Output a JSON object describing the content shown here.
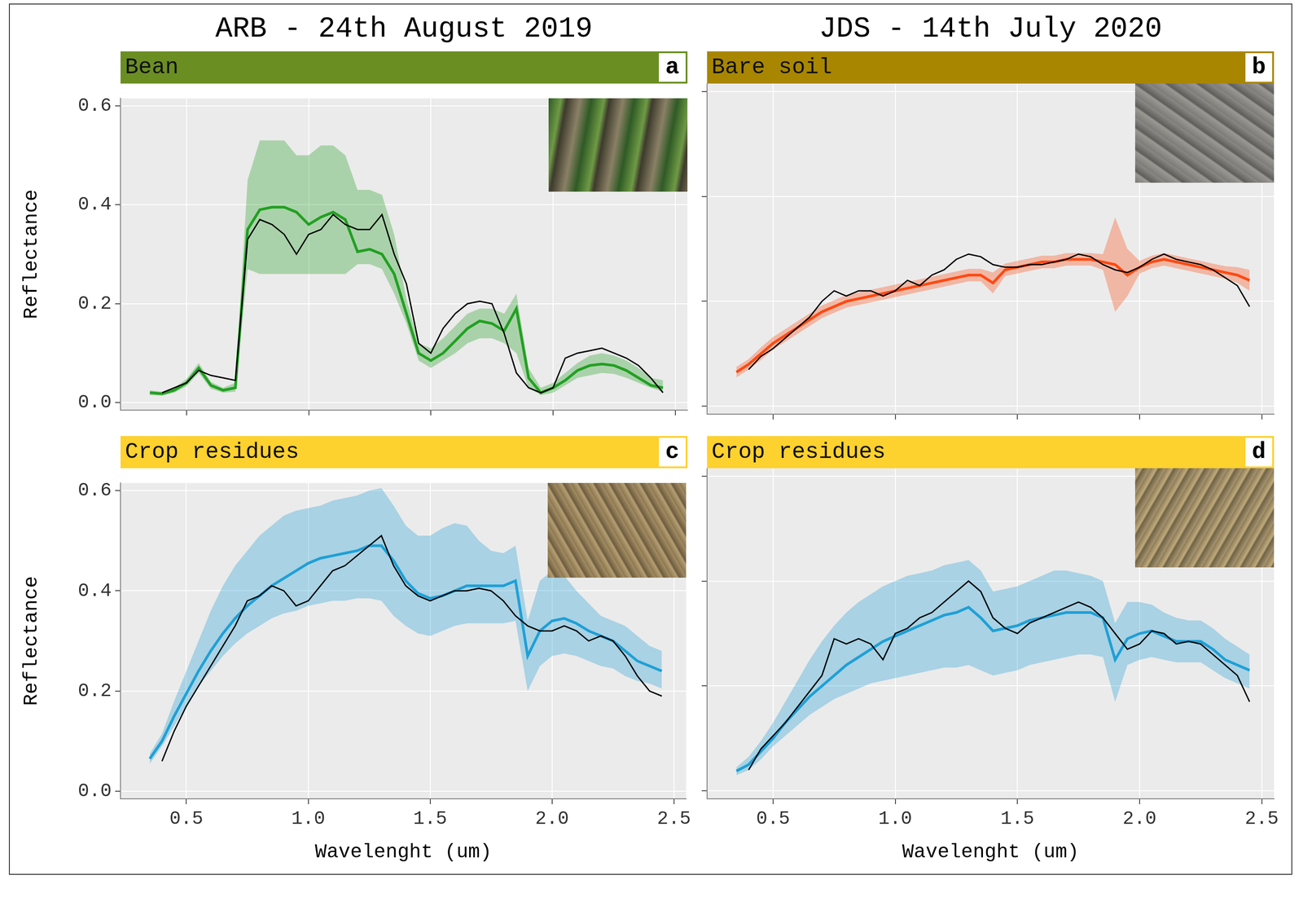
{
  "chart_data": [
    {
      "type": "line",
      "subtitle": "ARB - 24th August 2019",
      "title": "Bean",
      "panel": "a",
      "ylabel": "Reflectance",
      "tick_labels": "y",
      "grid": true,
      "xlim": [
        0.23,
        2.55
      ],
      "ylim": [
        -0.015,
        0.615
      ],
      "xticks": [
        0.5,
        {
          "value": 1,
          "label": "1.0"
        },
        1.5,
        {
          "value": 2,
          "label": "2.0"
        },
        2.5
      ],
      "yticks": [
        {
          "value": 0,
          "label": "0.0"
        },
        0.2,
        0.4,
        0.6
      ],
      "x": [
        0.35,
        0.4,
        0.45,
        0.5,
        0.55,
        0.6,
        0.65,
        0.7,
        0.75,
        0.8,
        0.85,
        0.9,
        0.95,
        1.0,
        1.05,
        1.1,
        1.15,
        1.2,
        1.25,
        1.3,
        1.35,
        1.4,
        1.45,
        1.5,
        1.55,
        1.6,
        1.65,
        1.7,
        1.75,
        1.8,
        1.85,
        1.9,
        1.95,
        2.0,
        2.05,
        2.1,
        2.15,
        2.2,
        2.25,
        2.3,
        2.35,
        2.4,
        2.45
      ],
      "series": [
        {
          "color": "#22a022",
          "values": [
            0.02,
            0.018,
            0.025,
            0.04,
            0.07,
            0.035,
            0.025,
            0.03,
            0.35,
            0.39,
            0.395,
            0.395,
            0.385,
            0.36,
            0.375,
            0.385,
            0.37,
            0.305,
            0.31,
            0.3,
            0.26,
            0.18,
            0.1,
            0.085,
            0.1,
            0.125,
            0.15,
            0.165,
            0.16,
            0.145,
            0.19,
            0.05,
            0.02,
            0.03,
            0.045,
            0.065,
            0.075,
            0.078,
            0.075,
            0.065,
            0.05,
            0.035,
            0.03
          ],
          "lower": [
            0.015,
            0.014,
            0.02,
            0.033,
            0.06,
            0.028,
            0.02,
            0.022,
            0.27,
            0.26,
            0.26,
            0.26,
            0.26,
            0.26,
            0.26,
            0.26,
            0.26,
            0.28,
            0.28,
            0.27,
            0.22,
            0.16,
            0.085,
            0.07,
            0.085,
            0.1,
            0.12,
            0.13,
            0.13,
            0.12,
            0.1,
            0.03,
            0.015,
            0.02,
            0.035,
            0.05,
            0.055,
            0.06,
            0.058,
            0.05,
            0.04,
            0.03,
            0.022
          ],
          "upper": [
            0.025,
            0.022,
            0.03,
            0.048,
            0.08,
            0.042,
            0.03,
            0.04,
            0.45,
            0.53,
            0.53,
            0.53,
            0.5,
            0.5,
            0.52,
            0.52,
            0.5,
            0.43,
            0.43,
            0.42,
            0.34,
            0.21,
            0.12,
            0.11,
            0.13,
            0.155,
            0.18,
            0.19,
            0.19,
            0.18,
            0.22,
            0.07,
            0.03,
            0.04,
            0.06,
            0.08,
            0.095,
            0.1,
            0.095,
            0.085,
            0.07,
            0.05,
            0.045
          ]
        },
        {
          "color": "#000000",
          "values": [
            null,
            0.02,
            0.03,
            0.04,
            0.065,
            0.055,
            0.05,
            0.045,
            0.33,
            0.37,
            0.36,
            0.34,
            0.3,
            0.34,
            0.35,
            0.38,
            0.36,
            0.35,
            0.35,
            0.38,
            0.3,
            0.24,
            0.12,
            0.1,
            0.15,
            0.18,
            0.2,
            0.205,
            0.2,
            0.14,
            0.06,
            0.03,
            0.02,
            0.03,
            0.09,
            0.1,
            0.105,
            0.11,
            0.1,
            0.09,
            0.075,
            0.05,
            0.02
          ]
        }
      ]
    },
    {
      "type": "line",
      "subtitle": "JDS - 14th July 2020",
      "title": "Bare soil",
      "panel": "b",
      "tick_labels": false,
      "grid": true,
      "xlim": [
        0.23,
        2.55
      ],
      "ylim": [
        -0.015,
        0.615
      ],
      "xticks": [
        0.5,
        {
          "value": 1,
          "label": "1.0"
        },
        1.5,
        {
          "value": 2,
          "label": "2.0"
        },
        2.5
      ],
      "yticks": [
        {
          "value": 0,
          "label": "0.0"
        },
        0.2,
        0.4,
        0.6
      ],
      "x": [
        0.35,
        0.4,
        0.45,
        0.5,
        0.55,
        0.6,
        0.65,
        0.7,
        0.75,
        0.8,
        0.85,
        0.9,
        0.95,
        1.0,
        1.05,
        1.1,
        1.15,
        1.2,
        1.25,
        1.3,
        1.35,
        1.4,
        1.45,
        1.5,
        1.55,
        1.6,
        1.65,
        1.7,
        1.75,
        1.8,
        1.85,
        1.9,
        1.95,
        2.0,
        2.05,
        2.1,
        2.15,
        2.2,
        2.25,
        2.3,
        2.35,
        2.4,
        2.45
      ],
      "series": [
        {
          "color": "#ff4a12",
          "values": [
            0.065,
            0.08,
            0.1,
            0.12,
            0.135,
            0.15,
            0.165,
            0.18,
            0.19,
            0.2,
            0.205,
            0.21,
            0.215,
            0.22,
            0.225,
            0.23,
            0.235,
            0.24,
            0.245,
            0.25,
            0.25,
            0.235,
            0.26,
            0.265,
            0.27,
            0.275,
            0.275,
            0.28,
            0.28,
            0.28,
            0.275,
            0.27,
            0.25,
            0.265,
            0.275,
            0.28,
            0.275,
            0.27,
            0.265,
            0.26,
            0.255,
            0.25,
            0.24
          ],
          "lower": [
            0.055,
            0.07,
            0.088,
            0.108,
            0.123,
            0.138,
            0.153,
            0.168,
            0.178,
            0.188,
            0.193,
            0.198,
            0.203,
            0.208,
            0.213,
            0.218,
            0.223,
            0.228,
            0.233,
            0.238,
            0.238,
            0.215,
            0.248,
            0.253,
            0.258,
            0.263,
            0.263,
            0.268,
            0.268,
            0.268,
            0.26,
            0.18,
            0.21,
            0.253,
            0.263,
            0.268,
            0.263,
            0.258,
            0.253,
            0.248,
            0.243,
            0.235,
            0.22
          ],
          "upper": [
            0.075,
            0.09,
            0.112,
            0.132,
            0.147,
            0.162,
            0.177,
            0.192,
            0.202,
            0.212,
            0.217,
            0.222,
            0.227,
            0.232,
            0.237,
            0.242,
            0.247,
            0.252,
            0.257,
            0.262,
            0.262,
            0.255,
            0.272,
            0.277,
            0.282,
            0.287,
            0.287,
            0.292,
            0.292,
            0.292,
            0.29,
            0.36,
            0.3,
            0.277,
            0.287,
            0.292,
            0.287,
            0.282,
            0.277,
            0.272,
            0.267,
            0.265,
            0.26
          ]
        },
        {
          "color": "#000000",
          "values": [
            null,
            0.07,
            0.095,
            0.11,
            0.13,
            0.15,
            0.17,
            0.2,
            0.22,
            0.21,
            0.22,
            0.22,
            0.21,
            0.22,
            0.24,
            0.23,
            0.25,
            0.26,
            0.28,
            0.29,
            0.285,
            0.27,
            0.265,
            0.265,
            0.27,
            0.27,
            0.275,
            0.28,
            0.29,
            0.285,
            0.27,
            0.26,
            0.255,
            0.265,
            0.28,
            0.29,
            0.28,
            0.275,
            0.27,
            0.26,
            0.245,
            0.23,
            0.19
          ]
        }
      ]
    },
    {
      "type": "line",
      "title": "Crop residues",
      "panel": "c",
      "xlabel": "Wavelenght (um)",
      "ylabel": "Reflectance",
      "grid": true,
      "xlim": [
        0.23,
        2.55
      ],
      "ylim": [
        -0.015,
        0.615
      ],
      "xticks": [
        0.5,
        {
          "value": 1,
          "label": "1.0"
        },
        1.5,
        {
          "value": 2,
          "label": "2.0"
        },
        2.5
      ],
      "yticks": [
        {
          "value": 0,
          "label": "0.0"
        },
        0.2,
        0.4,
        0.6
      ],
      "x": [
        0.35,
        0.4,
        0.45,
        0.5,
        0.55,
        0.6,
        0.65,
        0.7,
        0.75,
        0.8,
        0.85,
        0.9,
        0.95,
        1.0,
        1.05,
        1.1,
        1.15,
        1.2,
        1.25,
        1.3,
        1.35,
        1.4,
        1.45,
        1.5,
        1.55,
        1.6,
        1.65,
        1.7,
        1.75,
        1.8,
        1.85,
        1.9,
        1.95,
        2.0,
        2.05,
        2.1,
        2.15,
        2.2,
        2.25,
        2.3,
        2.35,
        2.4,
        2.45
      ],
      "series": [
        {
          "color": "#1fa0d6",
          "values": [
            0.065,
            0.1,
            0.15,
            0.195,
            0.24,
            0.28,
            0.315,
            0.345,
            0.37,
            0.39,
            0.41,
            0.425,
            0.44,
            0.455,
            0.465,
            0.47,
            0.475,
            0.48,
            0.49,
            0.49,
            0.46,
            0.42,
            0.395,
            0.385,
            0.39,
            0.4,
            0.41,
            0.41,
            0.41,
            0.41,
            0.42,
            0.27,
            0.32,
            0.34,
            0.345,
            0.335,
            0.32,
            0.31,
            0.3,
            0.28,
            0.26,
            0.25,
            0.24
          ],
          "lower": [
            0.055,
            0.09,
            0.13,
            0.17,
            0.21,
            0.24,
            0.27,
            0.295,
            0.315,
            0.33,
            0.345,
            0.355,
            0.36,
            0.37,
            0.375,
            0.38,
            0.38,
            0.385,
            0.385,
            0.38,
            0.35,
            0.33,
            0.315,
            0.31,
            0.32,
            0.33,
            0.335,
            0.335,
            0.335,
            0.335,
            0.34,
            0.2,
            0.25,
            0.27,
            0.275,
            0.27,
            0.26,
            0.25,
            0.245,
            0.23,
            0.22,
            0.215,
            0.205
          ],
          "upper": [
            0.075,
            0.115,
            0.18,
            0.24,
            0.3,
            0.36,
            0.41,
            0.45,
            0.48,
            0.51,
            0.53,
            0.55,
            0.56,
            0.565,
            0.57,
            0.58,
            0.585,
            0.59,
            0.6,
            0.605,
            0.57,
            0.53,
            0.51,
            0.51,
            0.525,
            0.535,
            0.53,
            0.5,
            0.48,
            0.475,
            0.49,
            0.34,
            0.42,
            0.44,
            0.43,
            0.4,
            0.375,
            0.35,
            0.34,
            0.33,
            0.31,
            0.29,
            0.28
          ]
        },
        {
          "color": "#000000",
          "values": [
            null,
            0.06,
            0.12,
            0.17,
            0.21,
            0.25,
            0.29,
            0.33,
            0.38,
            0.39,
            0.41,
            0.4,
            0.37,
            0.38,
            0.41,
            0.44,
            0.45,
            0.47,
            0.49,
            0.51,
            0.45,
            0.41,
            0.39,
            0.38,
            0.39,
            0.4,
            0.4,
            0.405,
            0.4,
            0.38,
            0.35,
            0.33,
            0.32,
            0.32,
            0.33,
            0.32,
            0.3,
            0.31,
            0.3,
            0.27,
            0.23,
            0.2,
            0.19
          ]
        }
      ]
    },
    {
      "type": "line",
      "title": "Crop residues",
      "panel": "d",
      "xlabel": "Wavelenght (um)",
      "tick_labels": "x",
      "grid": true,
      "xlim": [
        0.23,
        2.55
      ],
      "ylim": [
        -0.015,
        0.615
      ],
      "xticks": [
        0.5,
        {
          "value": 1,
          "label": "1.0"
        },
        1.5,
        {
          "value": 2,
          "label": "2.0"
        },
        2.5
      ],
      "yticks": [
        {
          "value": 0,
          "label": "0.0"
        },
        0.2,
        0.4,
        0.6
      ],
      "x": [
        0.35,
        0.4,
        0.45,
        0.5,
        0.55,
        0.6,
        0.65,
        0.7,
        0.75,
        0.8,
        0.85,
        0.9,
        0.95,
        1.0,
        1.05,
        1.1,
        1.15,
        1.2,
        1.25,
        1.3,
        1.35,
        1.4,
        1.45,
        1.5,
        1.55,
        1.6,
        1.65,
        1.7,
        1.75,
        1.8,
        1.85,
        1.9,
        1.95,
        2.0,
        2.05,
        2.1,
        2.15,
        2.2,
        2.25,
        2.3,
        2.35,
        2.4,
        2.45
      ],
      "series": [
        {
          "color": "#1fa0d6",
          "values": [
            0.038,
            0.05,
            0.075,
            0.1,
            0.13,
            0.155,
            0.18,
            0.2,
            0.22,
            0.24,
            0.255,
            0.27,
            0.285,
            0.295,
            0.305,
            0.315,
            0.325,
            0.335,
            0.34,
            0.35,
            0.33,
            0.305,
            0.31,
            0.315,
            0.325,
            0.33,
            0.335,
            0.34,
            0.34,
            0.34,
            0.33,
            0.25,
            0.29,
            0.3,
            0.305,
            0.295,
            0.285,
            0.285,
            0.285,
            0.27,
            0.25,
            0.24,
            0.23
          ],
          "lower": [
            0.03,
            0.04,
            0.06,
            0.085,
            0.105,
            0.125,
            0.145,
            0.16,
            0.175,
            0.185,
            0.195,
            0.205,
            0.21,
            0.215,
            0.22,
            0.225,
            0.23,
            0.235,
            0.235,
            0.24,
            0.23,
            0.22,
            0.225,
            0.23,
            0.24,
            0.245,
            0.25,
            0.255,
            0.26,
            0.26,
            0.255,
            0.17,
            0.24,
            0.25,
            0.255,
            0.25,
            0.245,
            0.245,
            0.245,
            0.23,
            0.215,
            0.205,
            0.195
          ],
          "upper": [
            0.045,
            0.065,
            0.095,
            0.13,
            0.17,
            0.21,
            0.25,
            0.285,
            0.315,
            0.34,
            0.36,
            0.375,
            0.39,
            0.4,
            0.41,
            0.415,
            0.42,
            0.43,
            0.435,
            0.44,
            0.42,
            0.38,
            0.385,
            0.39,
            0.4,
            0.41,
            0.42,
            0.42,
            0.415,
            0.41,
            0.4,
            0.32,
            0.36,
            0.36,
            0.355,
            0.34,
            0.33,
            0.325,
            0.325,
            0.31,
            0.29,
            0.275,
            0.26
          ]
        },
        {
          "color": "#000000",
          "values": [
            null,
            0.04,
            0.08,
            0.105,
            0.13,
            0.16,
            0.19,
            0.22,
            0.29,
            0.28,
            0.29,
            0.28,
            0.25,
            0.3,
            0.31,
            0.33,
            0.34,
            0.36,
            0.38,
            0.4,
            0.38,
            0.33,
            0.31,
            0.3,
            0.32,
            0.33,
            0.34,
            0.35,
            0.36,
            0.35,
            0.33,
            0.3,
            0.27,
            0.28,
            0.305,
            0.3,
            0.28,
            0.285,
            0.28,
            0.26,
            0.24,
            0.22,
            0.17
          ]
        }
      ]
    }
  ]
}
